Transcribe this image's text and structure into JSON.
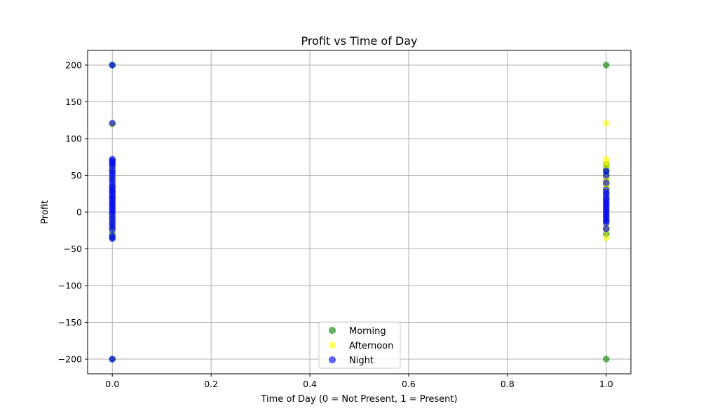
{
  "chart_data": {
    "type": "scatter",
    "title": "Profit vs Time of Day",
    "xlabel": "Time of Day (0 = Not Present, 1 = Present)",
    "ylabel": "Profit",
    "xlim": [
      -0.05,
      1.05
    ],
    "ylim": [
      -220,
      220
    ],
    "xticks": [
      0.0,
      0.2,
      0.4,
      0.6,
      0.8,
      1.0
    ],
    "xtick_labels": [
      "0.0",
      "0.2",
      "0.4",
      "0.6",
      "0.8",
      "1.0"
    ],
    "yticks": [
      -200,
      -150,
      -100,
      -50,
      0,
      50,
      100,
      150,
      200
    ],
    "ytick_labels": [
      "−200",
      "−150",
      "−100",
      "−50",
      "0",
      "50",
      "100",
      "150",
      "200"
    ],
    "grid": true,
    "legend_position": "bottom-center",
    "series": [
      {
        "name": "Morning",
        "color": "#008000",
        "points": [
          [
            0,
            -200
          ],
          [
            0,
            -35
          ],
          [
            0,
            -30
          ],
          [
            0,
            -22
          ],
          [
            0,
            -15
          ],
          [
            0,
            -8
          ],
          [
            0,
            -2
          ],
          [
            0,
            5
          ],
          [
            0,
            12
          ],
          [
            0,
            20
          ],
          [
            0,
            28
          ],
          [
            0,
            35
          ],
          [
            0,
            45
          ],
          [
            0,
            55
          ],
          [
            0,
            65
          ],
          [
            0,
            70
          ],
          [
            0,
            120
          ],
          [
            0,
            200
          ],
          [
            1,
            -200
          ],
          [
            1,
            -30
          ],
          [
            1,
            -22
          ],
          [
            1,
            -12
          ],
          [
            1,
            -5
          ],
          [
            1,
            3
          ],
          [
            1,
            10
          ],
          [
            1,
            18
          ],
          [
            1,
            25
          ],
          [
            1,
            32
          ],
          [
            1,
            38
          ],
          [
            1,
            45
          ],
          [
            1,
            50
          ],
          [
            1,
            55
          ],
          [
            1,
            60
          ],
          [
            1,
            65
          ],
          [
            1,
            200
          ]
        ]
      },
      {
        "name": "Afternoon",
        "color": "#ffff00",
        "points": [
          [
            0,
            -22
          ],
          [
            0,
            -12
          ],
          [
            0,
            -5
          ],
          [
            0,
            5
          ],
          [
            0,
            15
          ],
          [
            0,
            25
          ],
          [
            0,
            35
          ],
          [
            0,
            45
          ],
          [
            0,
            60
          ],
          [
            0,
            70
          ],
          [
            0,
            120
          ],
          [
            1,
            -35
          ],
          [
            1,
            -25
          ],
          [
            1,
            -18
          ],
          [
            1,
            -10
          ],
          [
            1,
            -4
          ],
          [
            1,
            2
          ],
          [
            1,
            8
          ],
          [
            1,
            14
          ],
          [
            1,
            22
          ],
          [
            1,
            30
          ],
          [
            1,
            35
          ],
          [
            1,
            40
          ],
          [
            1,
            44
          ],
          [
            1,
            48
          ],
          [
            1,
            62
          ],
          [
            1,
            68
          ],
          [
            1,
            72
          ],
          [
            1,
            121
          ]
        ]
      },
      {
        "name": "Night",
        "color": "#0000ff",
        "points": [
          [
            0,
            -200
          ],
          [
            0,
            -36
          ],
          [
            0,
            -33
          ],
          [
            0,
            -24
          ],
          [
            0,
            -20
          ],
          [
            0,
            -16
          ],
          [
            0,
            -12
          ],
          [
            0,
            -8
          ],
          [
            0,
            -4
          ],
          [
            0,
            0
          ],
          [
            0,
            3
          ],
          [
            0,
            6
          ],
          [
            0,
            9
          ],
          [
            0,
            12
          ],
          [
            0,
            15
          ],
          [
            0,
            18
          ],
          [
            0,
            21
          ],
          [
            0,
            24
          ],
          [
            0,
            27
          ],
          [
            0,
            30
          ],
          [
            0,
            33
          ],
          [
            0,
            36
          ],
          [
            0,
            40
          ],
          [
            0,
            44
          ],
          [
            0,
            48
          ],
          [
            0,
            52
          ],
          [
            0,
            56
          ],
          [
            0,
            60
          ],
          [
            0,
            64
          ],
          [
            0,
            67
          ],
          [
            0,
            70
          ],
          [
            0,
            72
          ],
          [
            0,
            121
          ],
          [
            0,
            200
          ],
          [
            1,
            -23
          ],
          [
            1,
            -15
          ],
          [
            1,
            -12
          ],
          [
            1,
            -9
          ],
          [
            1,
            -6
          ],
          [
            1,
            -3
          ],
          [
            1,
            0
          ],
          [
            1,
            3
          ],
          [
            1,
            6
          ],
          [
            1,
            9
          ],
          [
            1,
            12
          ],
          [
            1,
            15
          ],
          [
            1,
            18
          ],
          [
            1,
            22
          ],
          [
            1,
            26
          ],
          [
            1,
            30
          ],
          [
            1,
            40
          ],
          [
            1,
            50
          ],
          [
            1,
            56
          ]
        ]
      }
    ]
  }
}
